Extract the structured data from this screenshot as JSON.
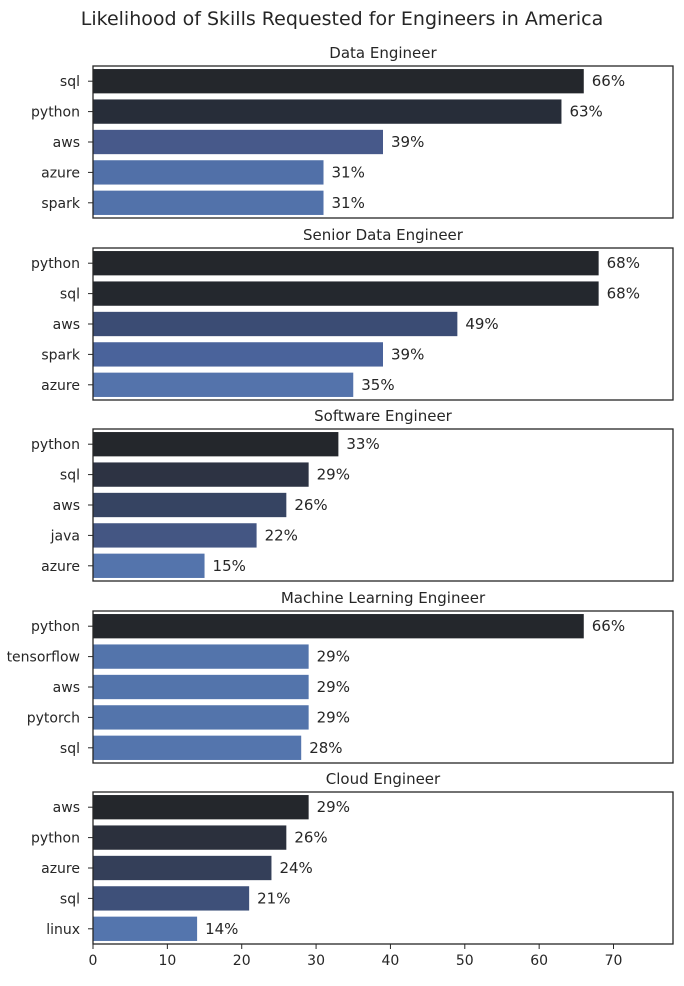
{
  "chart_data": {
    "type": "bar",
    "orientation": "horizontal",
    "title": "Likelihood of Skills Requested for Engineers in America",
    "xlim": [
      0,
      78
    ],
    "xticks": [
      0,
      10,
      20,
      30,
      40,
      50,
      60,
      70
    ],
    "value_suffix": "%",
    "grid": false,
    "panels": [
      {
        "title": "Data Engineer",
        "categories": [
          "sql",
          "python",
          "aws",
          "azure",
          "spark"
        ],
        "values": [
          66,
          63,
          39,
          31,
          31
        ],
        "colors": [
          "#24272c",
          "#272d39",
          "#47598a",
          "#5170a8",
          "#5272aa"
        ]
      },
      {
        "title": "Senior Data Engineer",
        "categories": [
          "python",
          "sql",
          "aws",
          "spark",
          "azure"
        ],
        "values": [
          68,
          68,
          49,
          39,
          35
        ],
        "colors": [
          "#24272c",
          "#24282e",
          "#3b4c74",
          "#4a639b",
          "#5473ab"
        ]
      },
      {
        "title": "Software Engineer",
        "categories": [
          "python",
          "sql",
          "aws",
          "java",
          "azure"
        ],
        "values": [
          33,
          29,
          26,
          22,
          15
        ],
        "colors": [
          "#24272c",
          "#2d3343",
          "#364462",
          "#445683",
          "#5474ac"
        ]
      },
      {
        "title": "Machine Learning Engineer",
        "categories": [
          "python",
          "tensorflow",
          "aws",
          "pytorch",
          "sql"
        ],
        "values": [
          66,
          29,
          29,
          29,
          28
        ],
        "colors": [
          "#24272c",
          "#5374ab",
          "#5374ab",
          "#5374ab",
          "#5475ad"
        ]
      },
      {
        "title": "Cloud Engineer",
        "categories": [
          "aws",
          "python",
          "azure",
          "sql",
          "linux"
        ],
        "values": [
          29,
          26,
          24,
          21,
          14
        ],
        "colors": [
          "#24272c",
          "#2b303d",
          "#343f59",
          "#3e5079",
          "#5475ad"
        ]
      }
    ]
  }
}
